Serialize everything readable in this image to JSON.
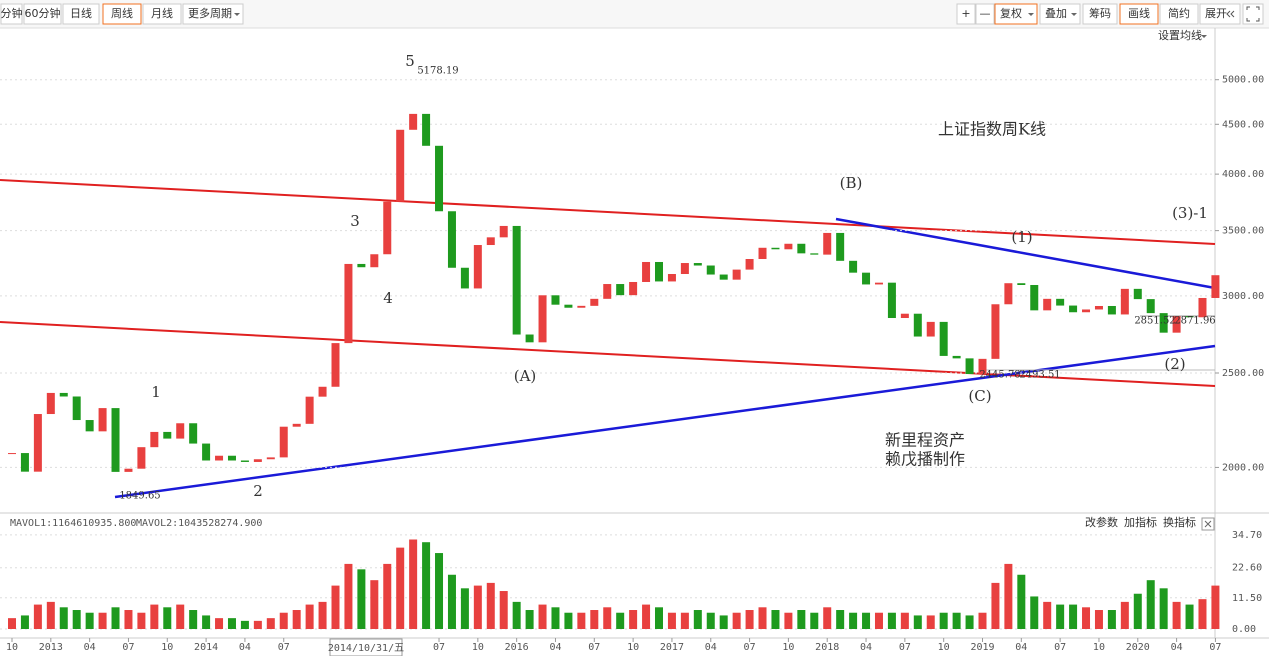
{
  "toolbar": {
    "left": [
      "分钟",
      "60分钟",
      "日线",
      "周线",
      "月线",
      "更多周期"
    ],
    "right": [
      "+",
      "—",
      "复权",
      "叠加",
      "筹码",
      "画线",
      "简约",
      "展开"
    ],
    "ma_setting": "设置均线",
    "selected": [
      "周线",
      "复权",
      "画线"
    ]
  },
  "chart_data": [
    {
      "type": "candlestick",
      "title": "上证指数周K线",
      "log_scale": true,
      "grid": true,
      "up_color": "#e8403f",
      "down_color": "#1e9a1e",
      "x": [
        "2012-10",
        "2012-11",
        "2012-12",
        "2013-01",
        "2013-02",
        "2013-03",
        "2013-04",
        "2013-05",
        "2013-06",
        "2013-07",
        "2013-08",
        "2013-09",
        "2013-10",
        "2013-11",
        "2013-12",
        "2014-01",
        "2014-02",
        "2014-03",
        "2014-04",
        "2014-05",
        "2014-06",
        "2014-07",
        "2014-08",
        "2014-09",
        "2014-10",
        "2014-11",
        "2014-12",
        "2015-01",
        "2015-02",
        "2015-03",
        "2015-04",
        "2015-05",
        "2015-06",
        "2015-07",
        "2015-08",
        "2015-09",
        "2015-10",
        "2015-11",
        "2015-12",
        "2016-01",
        "2016-02",
        "2016-03",
        "2016-04",
        "2016-05",
        "2016-06",
        "2016-07",
        "2016-08",
        "2016-09",
        "2016-10",
        "2016-11",
        "2016-12",
        "2017-01",
        "2017-02",
        "2017-03",
        "2017-04",
        "2017-05",
        "2017-06",
        "2017-07",
        "2017-08",
        "2017-09",
        "2017-10",
        "2017-11",
        "2017-12",
        "2018-01",
        "2018-02",
        "2018-03",
        "2018-04",
        "2018-05",
        "2018-06",
        "2018-07",
        "2018-08",
        "2018-09",
        "2018-10",
        "2018-11",
        "2018-12",
        "2019-01",
        "2019-02",
        "2019-03",
        "2019-04",
        "2019-05",
        "2019-06",
        "2019-07",
        "2019-08",
        "2019-09",
        "2019-10",
        "2019-11",
        "2019-12",
        "2020-01",
        "2020-02",
        "2020-03",
        "2020-04",
        "2020-05",
        "2020-06",
        "2020-07"
      ],
      "values": [
        2069,
        1980,
        2269,
        2385,
        2365,
        2237,
        2178,
        2301,
        1979,
        1994,
        2098,
        2175,
        2141,
        2220,
        2116,
        2033,
        2056,
        2033,
        2026,
        2039,
        2048,
        2202,
        2217,
        2364,
        2420,
        2683,
        3235,
        3210,
        3310,
        3748,
        4442,
        4612,
        4277,
        3664,
        3206,
        3053,
        3383,
        3445,
        3539,
        2738,
        2688,
        3004,
        2938,
        2917,
        2930,
        2979,
        3085,
        3005,
        3100,
        3250,
        3104,
        3159,
        3242,
        3223,
        3155,
        3117,
        3192,
        3273,
        3361,
        3349,
        3393,
        3317,
        3307,
        3481,
        3259,
        3169,
        3082,
        3095,
        2847,
        2876,
        2725,
        2821,
        2603,
        2588,
        2494,
        2585,
        2941,
        3091,
        3078,
        2899,
        2979,
        2932,
        2886,
        2905,
        2929,
        2871,
        3050,
        2977,
        2880,
        2750,
        2860,
        2852,
        2985,
        3150
      ],
      "ylim": [
        1800,
        5650
      ],
      "yticks": [
        {
          "value": 2000,
          "label": "2000.00"
        },
        {
          "value": 2500,
          "label": "2500.00"
        },
        {
          "value": 3000,
          "label": "3000.00"
        },
        {
          "value": 3500,
          "label": "3500.00"
        },
        {
          "value": 4000,
          "label": "4000.00"
        },
        {
          "value": 4500,
          "label": "4500.00"
        },
        {
          "value": 5000,
          "label": "5000.00"
        }
      ],
      "xticks": [
        {
          "value": "2012-10",
          "label": "10"
        },
        {
          "value": "2013-01",
          "label": "2013"
        },
        {
          "value": "2013-04",
          "label": "04"
        },
        {
          "value": "2013-07",
          "label": "07"
        },
        {
          "value": "2013-10",
          "label": "10"
        },
        {
          "value": "2014-01",
          "label": "2014"
        },
        {
          "value": "2014-04",
          "label": "04"
        },
        {
          "value": "2014-07",
          "label": "07"
        },
        {
          "value": "2015-07",
          "label": "07"
        },
        {
          "value": "2015-10",
          "label": "10"
        },
        {
          "value": "2016-01",
          "label": "2016"
        },
        {
          "value": "2016-04",
          "label": "04"
        },
        {
          "value": "2016-07",
          "label": "07"
        },
        {
          "value": "2016-10",
          "label": "10"
        },
        {
          "value": "2017-01",
          "label": "2017"
        },
        {
          "value": "2017-04",
          "label": "04"
        },
        {
          "value": "2017-07",
          "label": "07"
        },
        {
          "value": "2017-10",
          "label": "10"
        },
        {
          "value": "2018-01",
          "label": "2018"
        },
        {
          "value": "2018-04",
          "label": "04"
        },
        {
          "value": "2018-07",
          "label": "07"
        },
        {
          "value": "2018-10",
          "label": "10"
        },
        {
          "value": "2019-01",
          "label": "2019"
        },
        {
          "value": "2019-04",
          "label": "04"
        },
        {
          "value": "2019-07",
          "label": "07"
        },
        {
          "value": "2019-10",
          "label": "10"
        },
        {
          "value": "2020-01",
          "label": "2020"
        },
        {
          "value": "2020-04",
          "label": "04"
        },
        {
          "value": "2020-07",
          "label": "07"
        }
      ],
      "crosshair_label": "2014/10/31/五",
      "annotations": [
        "5",
        "5178.19",
        "3",
        "4",
        "1",
        "2",
        "1849.65",
        "(A)",
        "(B)",
        "(1)",
        "(C)",
        "(2)",
        "(3)-1",
        "新里程资产",
        "赖戊播制作",
        "2851.52",
        "2871.96",
        "2445.78",
        "2493.51"
      ]
    },
    {
      "type": "bar",
      "indicators": [
        "MAVOL1:1164610935.800",
        "MAVOL2:1043528274.900"
      ],
      "buttons": [
        "改参数",
        "加指标",
        "换指标"
      ],
      "values": [
        4,
        5,
        9,
        10,
        8,
        7,
        6,
        6,
        8,
        7,
        6,
        9,
        8,
        9,
        7,
        5,
        4,
        4,
        3,
        3,
        4,
        6,
        7,
        9,
        10,
        16,
        24,
        22,
        18,
        24,
        30,
        33,
        32,
        28,
        20,
        15,
        16,
        17,
        14,
        10,
        7,
        9,
        8,
        6,
        6,
        7,
        8,
        6,
        7,
        9,
        8,
        6,
        6,
        7,
        6,
        5,
        6,
        7,
        8,
        7,
        6,
        7,
        6,
        8,
        7,
        6,
        6,
        6,
        6,
        6,
        5,
        5,
        6,
        6,
        5,
        6,
        17,
        24,
        20,
        12,
        10,
        9,
        9,
        8,
        7,
        7,
        10,
        13,
        18,
        15,
        10,
        9,
        11,
        16
      ],
      "ylim": [
        0,
        36.5
      ],
      "yticks": [
        {
          "value": 0,
          "label": "0.00"
        },
        {
          "value": 11.5,
          "label": "11.50"
        },
        {
          "value": 22.6,
          "label": "22.60"
        },
        {
          "value": 34.7,
          "label": "34.70"
        }
      ]
    }
  ]
}
